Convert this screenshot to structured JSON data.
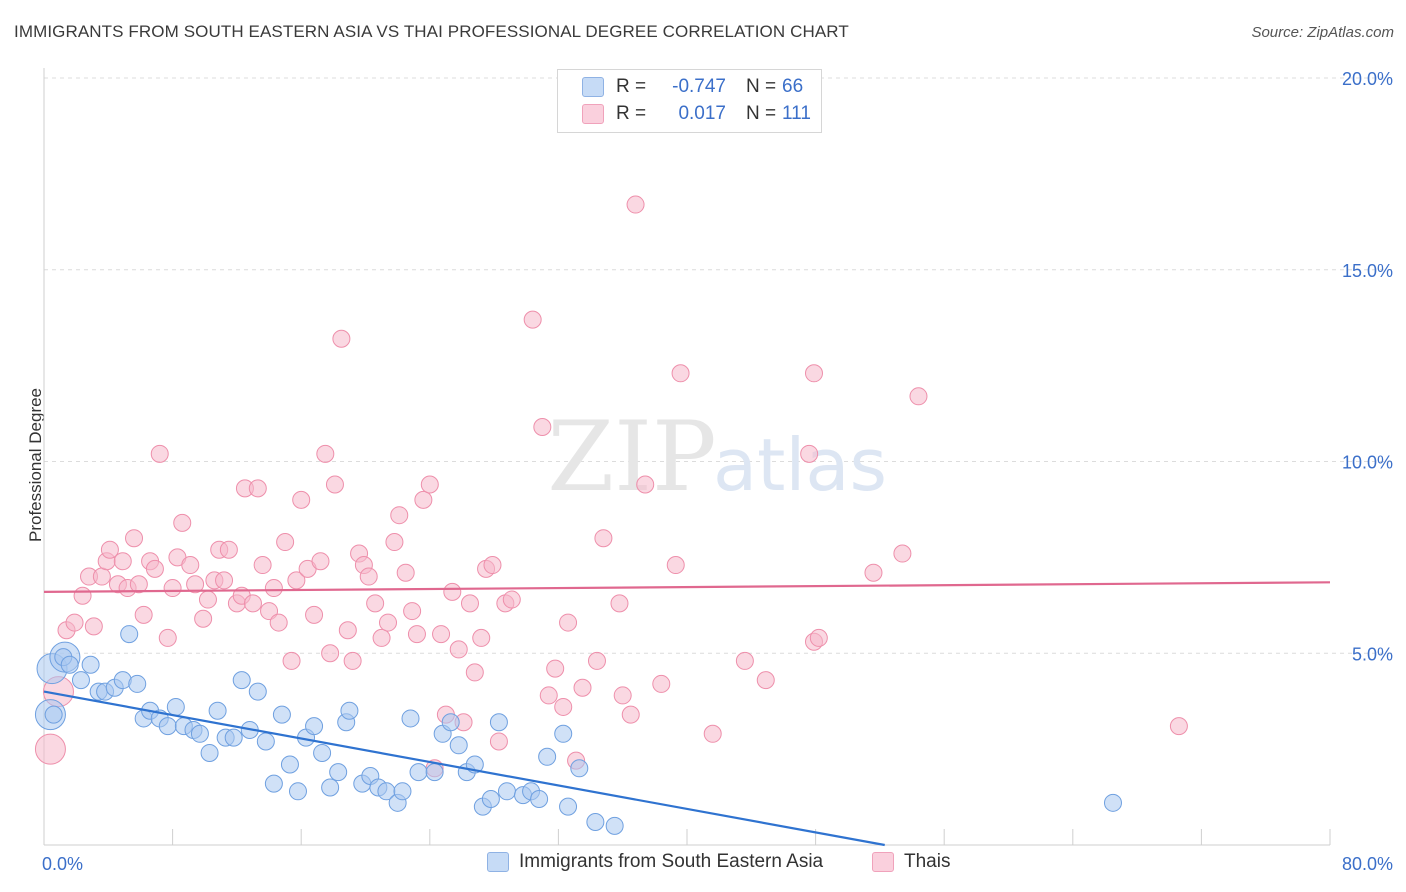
{
  "header": {
    "title": "IMMIGRANTS FROM SOUTH EASTERN ASIA VS THAI PROFESSIONAL DEGREE CORRELATION CHART",
    "source": "Source: ZipAtlas.com"
  },
  "watermark": {
    "zip": "ZIP",
    "atlas": "atlas"
  },
  "legend": {
    "rows": [
      {
        "r_label": "R =",
        "r_value": "-0.747",
        "n_label": "N =",
        "n_value": "66",
        "color": "#aac8f0"
      },
      {
        "r_label": "R =",
        "r_value": "0.017",
        "n_label": "N =",
        "n_value": "111",
        "color": "#f6b8cb"
      }
    ]
  },
  "bottom_legend": [
    {
      "label": "Immigrants from South Eastern Asia",
      "color": "#aac8f0"
    },
    {
      "label": "Thais",
      "color": "#f6b8cb"
    }
  ],
  "chart_data": {
    "type": "scatter",
    "title": "IMMIGRANTS FROM SOUTH EASTERN ASIA VS THAI PROFESSIONAL DEGREE CORRELATION CHART",
    "xlabel": "",
    "ylabel": "Professional Degree",
    "xlim": [
      0,
      80
    ],
    "ylim": [
      0,
      20
    ],
    "x_tick_labels": [
      "0.0%",
      "80.0%"
    ],
    "y_tick_labels": [
      "5.0%",
      "10.0%",
      "15.0%",
      "20.0%"
    ],
    "y_ticks": [
      5,
      10,
      15,
      20
    ],
    "grid": "horizontal dashed",
    "legend_position": "top-center",
    "series": [
      {
        "name": "Immigrants from South Eastern Asia",
        "color": "#6fa0e0",
        "fill": "#aac8f0",
        "trend": {
          "x": [
            0,
            52.3
          ],
          "y": [
            4.0,
            0.0
          ],
          "color": "#2f73d0"
        },
        "points": [
          [
            0.5,
            4.6
          ],
          [
            0.6,
            3.4
          ],
          [
            1.2,
            4.9
          ],
          [
            1.6,
            4.7
          ],
          [
            2.3,
            4.3
          ],
          [
            2.9,
            4.7
          ],
          [
            3.4,
            4.0
          ],
          [
            3.8,
            4.0
          ],
          [
            4.4,
            4.1
          ],
          [
            4.9,
            4.3
          ],
          [
            5.3,
            5.5
          ],
          [
            5.8,
            4.2
          ],
          [
            6.2,
            3.3
          ],
          [
            6.6,
            3.5
          ],
          [
            7.2,
            3.3
          ],
          [
            7.7,
            3.1
          ],
          [
            8.2,
            3.6
          ],
          [
            8.7,
            3.1
          ],
          [
            9.3,
            3.0
          ],
          [
            9.7,
            2.9
          ],
          [
            10.3,
            2.4
          ],
          [
            10.8,
            3.5
          ],
          [
            11.3,
            2.8
          ],
          [
            11.8,
            2.8
          ],
          [
            12.3,
            4.3
          ],
          [
            12.8,
            3.0
          ],
          [
            13.3,
            4.0
          ],
          [
            13.8,
            2.7
          ],
          [
            14.3,
            1.6
          ],
          [
            14.8,
            3.4
          ],
          [
            15.3,
            2.1
          ],
          [
            15.8,
            1.4
          ],
          [
            16.3,
            2.8
          ],
          [
            16.8,
            3.1
          ],
          [
            17.3,
            2.4
          ],
          [
            17.8,
            1.5
          ],
          [
            18.3,
            1.9
          ],
          [
            18.8,
            3.2
          ],
          [
            19.0,
            3.5
          ],
          [
            19.8,
            1.6
          ],
          [
            20.3,
            1.8
          ],
          [
            20.8,
            1.5
          ],
          [
            21.3,
            1.4
          ],
          [
            22.0,
            1.1
          ],
          [
            22.3,
            1.4
          ],
          [
            22.8,
            3.3
          ],
          [
            23.3,
            1.9
          ],
          [
            24.3,
            1.9
          ],
          [
            24.8,
            2.9
          ],
          [
            25.3,
            3.2
          ],
          [
            25.8,
            2.6
          ],
          [
            26.3,
            1.9
          ],
          [
            26.8,
            2.1
          ],
          [
            27.3,
            1.0
          ],
          [
            27.8,
            1.2
          ],
          [
            28.3,
            3.2
          ],
          [
            28.8,
            1.4
          ],
          [
            29.8,
            1.3
          ],
          [
            30.3,
            1.4
          ],
          [
            30.8,
            1.2
          ],
          [
            31.3,
            2.3
          ],
          [
            32.3,
            2.9
          ],
          [
            32.6,
            1.0
          ],
          [
            33.3,
            2.0
          ],
          [
            34.3,
            0.6
          ],
          [
            35.5,
            0.5
          ],
          [
            66.5,
            1.1
          ]
        ],
        "large_points": [
          [
            0.4,
            3.4
          ],
          [
            0.5,
            4.6
          ],
          [
            1.3,
            4.9
          ]
        ]
      },
      {
        "name": "Thais",
        "color": "#ee8fab",
        "fill": "#f6b8cb",
        "trend": {
          "x": [
            0,
            80
          ],
          "y": [
            6.6,
            6.85
          ],
          "color": "#e0688f"
        },
        "points": [
          [
            0.4,
            2.5
          ],
          [
            0.9,
            4.0
          ],
          [
            1.4,
            5.6
          ],
          [
            1.9,
            5.8
          ],
          [
            2.4,
            6.5
          ],
          [
            2.8,
            7.0
          ],
          [
            3.1,
            5.7
          ],
          [
            3.6,
            7.0
          ],
          [
            3.9,
            7.4
          ],
          [
            4.1,
            7.7
          ],
          [
            4.6,
            6.8
          ],
          [
            4.9,
            7.4
          ],
          [
            5.2,
            6.7
          ],
          [
            5.6,
            8.0
          ],
          [
            5.9,
            6.8
          ],
          [
            6.2,
            6.0
          ],
          [
            6.6,
            7.4
          ],
          [
            6.9,
            7.2
          ],
          [
            7.2,
            10.2
          ],
          [
            7.7,
            5.4
          ],
          [
            8.0,
            6.7
          ],
          [
            8.3,
            7.5
          ],
          [
            8.6,
            8.4
          ],
          [
            9.1,
            7.3
          ],
          [
            9.4,
            6.8
          ],
          [
            9.9,
            5.9
          ],
          [
            10.2,
            6.4
          ],
          [
            10.6,
            6.9
          ],
          [
            10.9,
            7.7
          ],
          [
            11.2,
            6.9
          ],
          [
            11.5,
            7.7
          ],
          [
            12.0,
            6.3
          ],
          [
            12.3,
            6.5
          ],
          [
            12.5,
            9.3
          ],
          [
            13.0,
            6.3
          ],
          [
            13.3,
            9.3
          ],
          [
            13.6,
            7.3
          ],
          [
            14.0,
            6.1
          ],
          [
            14.3,
            6.7
          ],
          [
            14.6,
            5.8
          ],
          [
            15.0,
            7.9
          ],
          [
            15.4,
            4.8
          ],
          [
            15.7,
            6.9
          ],
          [
            16.0,
            9.0
          ],
          [
            16.4,
            7.2
          ],
          [
            16.8,
            6.0
          ],
          [
            17.2,
            7.4
          ],
          [
            17.5,
            10.2
          ],
          [
            17.8,
            5.0
          ],
          [
            18.1,
            9.4
          ],
          [
            18.5,
            13.2
          ],
          [
            18.9,
            5.6
          ],
          [
            19.2,
            4.8
          ],
          [
            19.6,
            7.6
          ],
          [
            19.9,
            7.3
          ],
          [
            20.2,
            7.0
          ],
          [
            20.6,
            6.3
          ],
          [
            21.0,
            5.4
          ],
          [
            21.4,
            5.8
          ],
          [
            21.8,
            7.9
          ],
          [
            22.1,
            8.6
          ],
          [
            22.5,
            7.1
          ],
          [
            22.9,
            6.1
          ],
          [
            23.2,
            5.5
          ],
          [
            23.6,
            9.0
          ],
          [
            24.0,
            9.4
          ],
          [
            24.3,
            2.0
          ],
          [
            24.7,
            5.5
          ],
          [
            25.0,
            3.4
          ],
          [
            25.4,
            6.6
          ],
          [
            25.8,
            5.1
          ],
          [
            26.1,
            3.2
          ],
          [
            26.5,
            6.3
          ],
          [
            26.8,
            4.5
          ],
          [
            27.2,
            5.4
          ],
          [
            27.5,
            7.2
          ],
          [
            27.9,
            7.3
          ],
          [
            28.3,
            2.7
          ],
          [
            28.7,
            6.3
          ],
          [
            29.1,
            6.4
          ],
          [
            30.4,
            13.7
          ],
          [
            31.0,
            10.9
          ],
          [
            31.4,
            3.9
          ],
          [
            31.8,
            4.6
          ],
          [
            32.3,
            3.6
          ],
          [
            32.6,
            5.8
          ],
          [
            33.1,
            2.2
          ],
          [
            33.5,
            4.1
          ],
          [
            34.4,
            4.8
          ],
          [
            34.8,
            8.0
          ],
          [
            35.8,
            6.3
          ],
          [
            36.0,
            3.9
          ],
          [
            36.5,
            3.4
          ],
          [
            36.8,
            16.7
          ],
          [
            37.4,
            9.4
          ],
          [
            38.4,
            4.2
          ],
          [
            39.3,
            7.3
          ],
          [
            39.6,
            12.3
          ],
          [
            41.6,
            2.9
          ],
          [
            43.6,
            4.8
          ],
          [
            44.9,
            4.3
          ],
          [
            47.6,
            10.2
          ],
          [
            47.9,
            12.3
          ],
          [
            47.9,
            5.3
          ],
          [
            48.2,
            5.4
          ],
          [
            51.6,
            7.1
          ],
          [
            53.4,
            7.6
          ],
          [
            54.4,
            11.7
          ],
          [
            70.6,
            3.1
          ]
        ],
        "large_points": [
          [
            0.4,
            2.5
          ],
          [
            0.9,
            4.0
          ]
        ]
      }
    ]
  }
}
